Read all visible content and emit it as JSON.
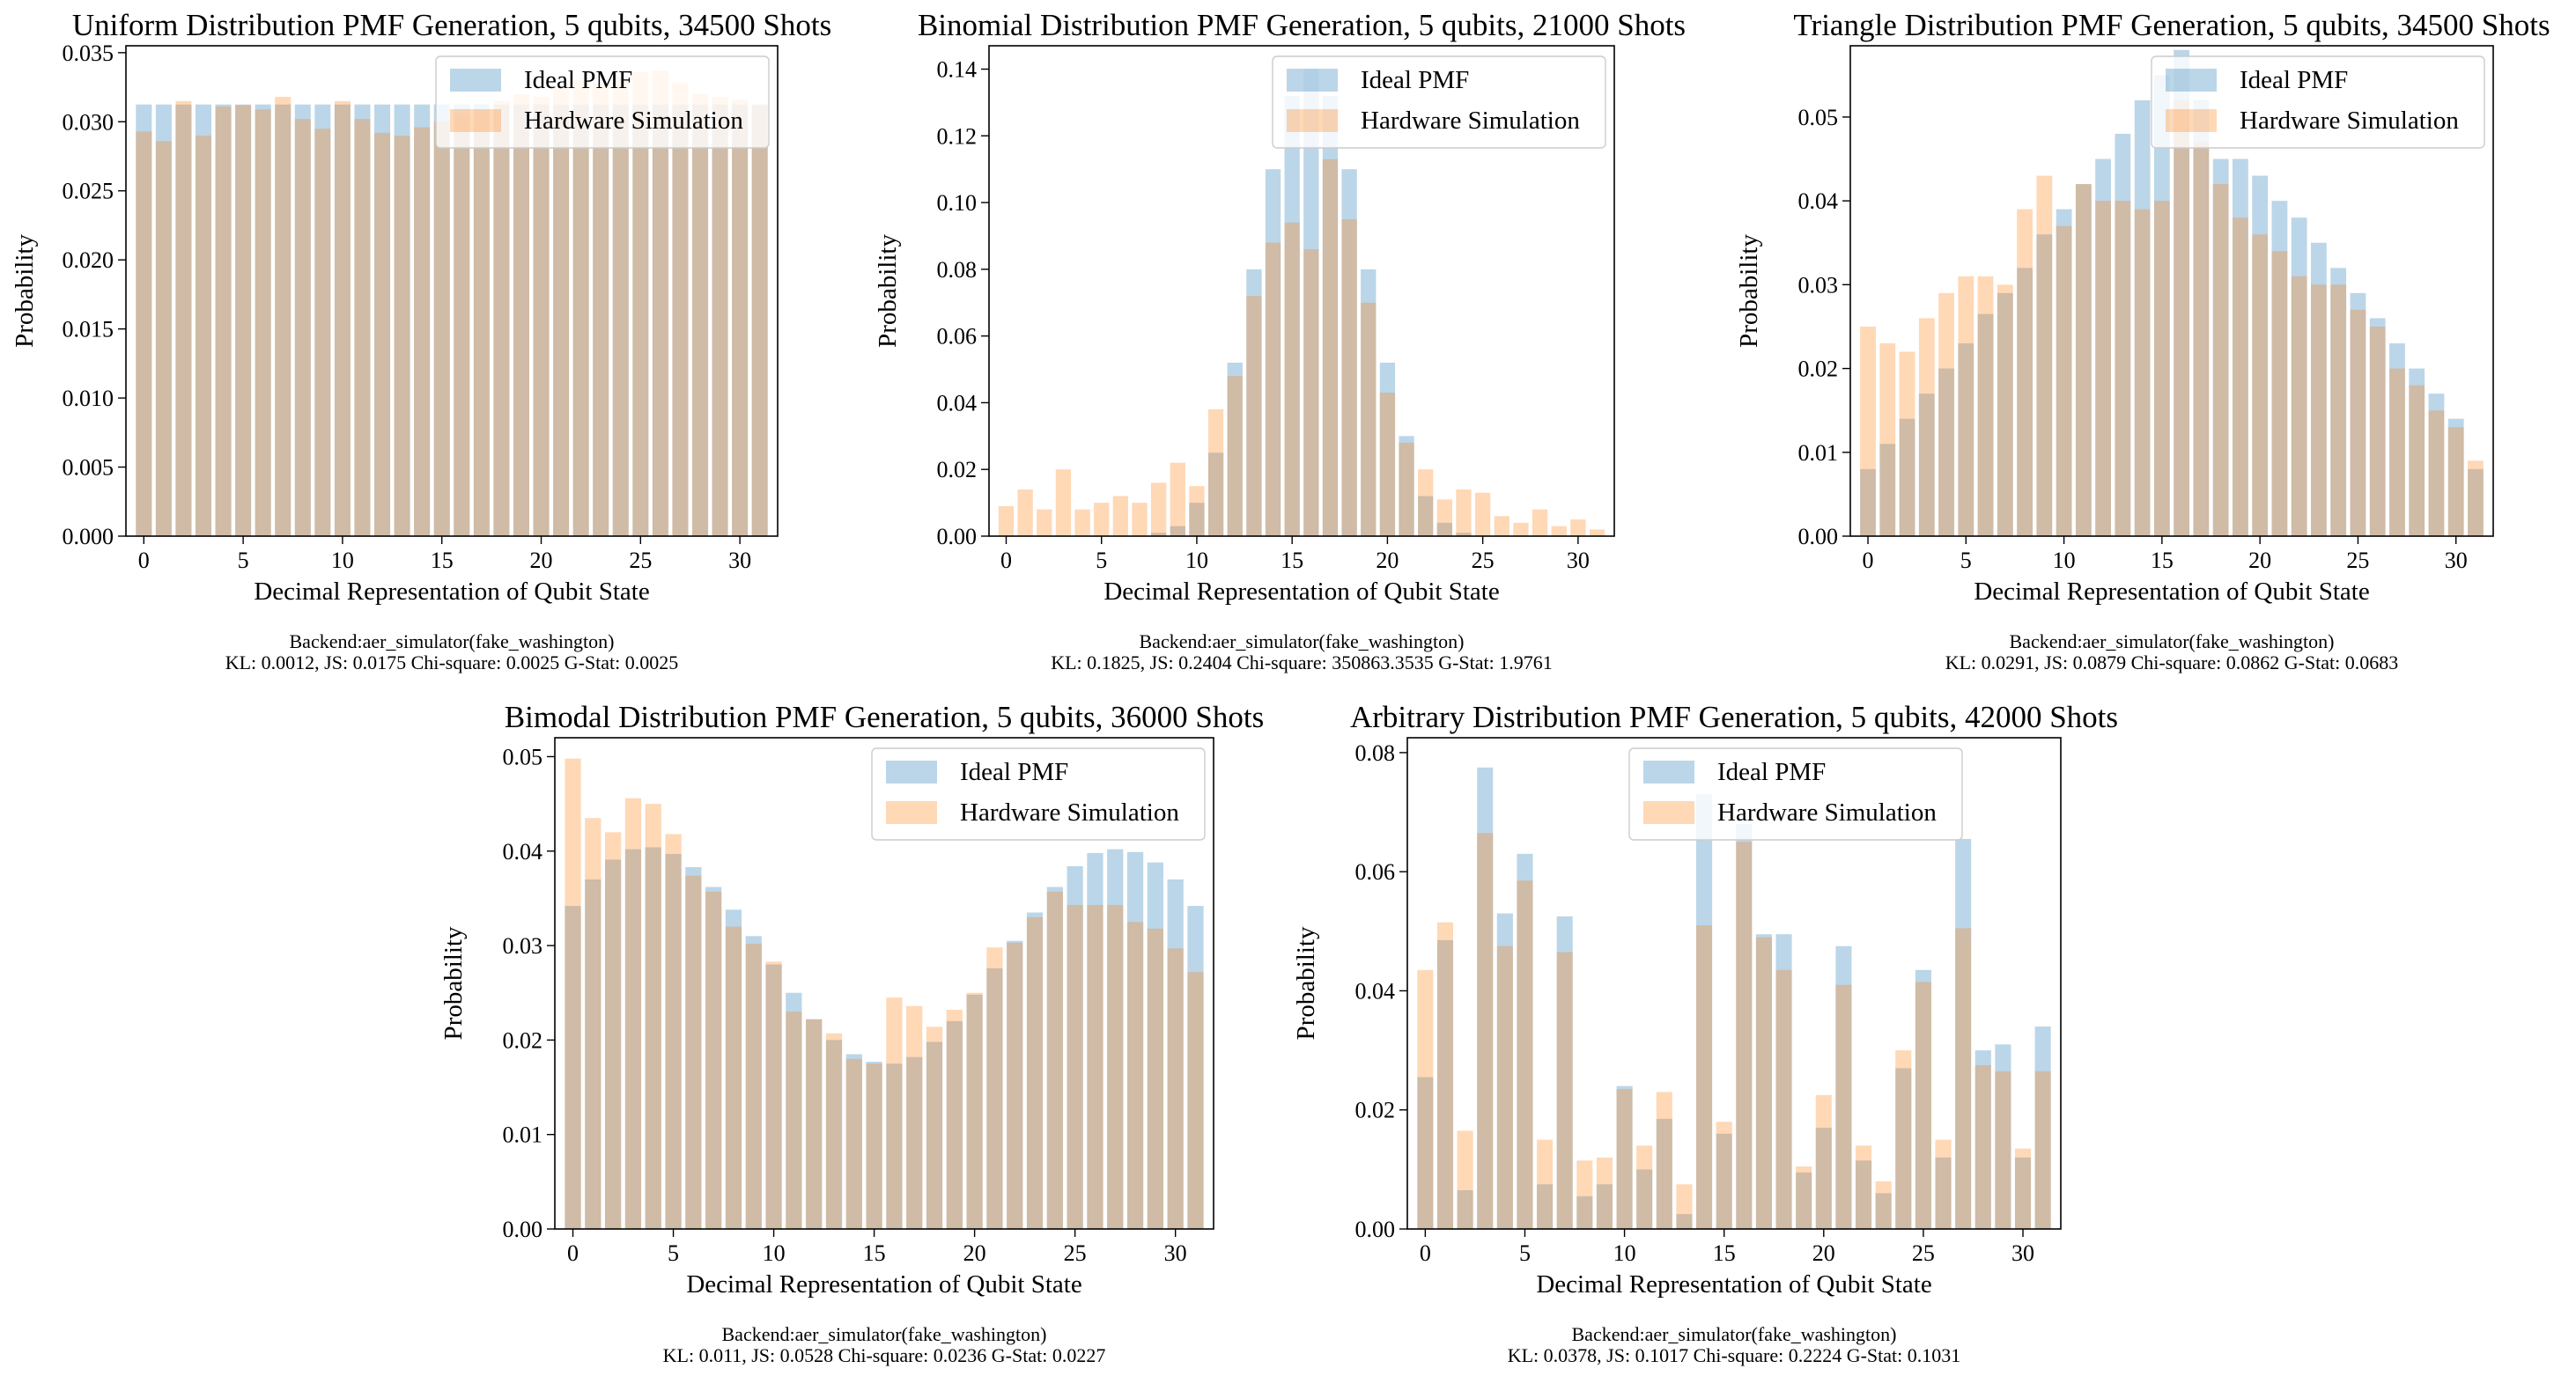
{
  "figure": {
    "series_names": [
      "Ideal PMF",
      "Hardware Simulation"
    ],
    "colors": {
      "ideal": "#1f77b4",
      "hardware": "#ff7f0e",
      "overlap": "#c9b3a0",
      "axis": "#000000",
      "background": "#ffffff"
    }
  },
  "chart_data": [
    {
      "type": "bar",
      "title": "Uniform Distribution PMF Generation, 5 qubits, 34500 Shots",
      "xlabel": "Decimal Representation of Qubit State",
      "ylabel": "Probability",
      "ylim": [
        0,
        0.0355
      ],
      "yticks": [
        0,
        0.005,
        0.01,
        0.015,
        0.02,
        0.025,
        0.03,
        0.035
      ],
      "ytick_labels": [
        "0.000",
        "0.005",
        "0.010",
        "0.015",
        "0.020",
        "0.025",
        "0.030",
        "0.035"
      ],
      "xticks": [
        0,
        5,
        10,
        15,
        20,
        25,
        30
      ],
      "legend_loc": "top-right",
      "series": [
        {
          "name": "Ideal PMF",
          "values": [
            0.03125,
            0.03125,
            0.03125,
            0.03125,
            0.03125,
            0.03125,
            0.03125,
            0.03125,
            0.03125,
            0.03125,
            0.03125,
            0.03125,
            0.03125,
            0.03125,
            0.03125,
            0.03125,
            0.03125,
            0.03125,
            0.03125,
            0.03125,
            0.03125,
            0.03125,
            0.03125,
            0.03125,
            0.03125,
            0.03125,
            0.03125,
            0.03125,
            0.03125,
            0.03125,
            0.03125,
            0.03125
          ]
        },
        {
          "name": "Hardware Simulation",
          "values": [
            0.0293,
            0.0286,
            0.0315,
            0.029,
            0.0311,
            0.0312,
            0.0309,
            0.0318,
            0.0302,
            0.0295,
            0.0315,
            0.0302,
            0.0292,
            0.029,
            0.0296,
            0.03,
            0.0305,
            0.0308,
            0.0315,
            0.032,
            0.0318,
            0.0325,
            0.033,
            0.0328,
            0.0332,
            0.0336,
            0.0337,
            0.0328,
            0.032,
            0.0318,
            0.0316,
            0.0312
          ]
        }
      ],
      "caption": [
        "Backend:aer_simulator(fake_washington)",
        "KL: 0.0012, JS: 0.0175 Chi-square: 0.0025 G-Stat: 0.0025"
      ]
    },
    {
      "type": "bar",
      "title": "Binomial Distribution PMF Generation, 5 qubits, 21000 Shots",
      "xlabel": "Decimal Representation of Qubit State",
      "ylabel": "Probability",
      "ylim": [
        0,
        0.147
      ],
      "yticks": [
        0,
        0.02,
        0.04,
        0.06,
        0.08,
        0.1,
        0.12,
        0.14
      ],
      "ytick_labels": [
        "0.00",
        "0.02",
        "0.04",
        "0.06",
        "0.08",
        "0.10",
        "0.12",
        "0.14"
      ],
      "xticks": [
        0,
        5,
        10,
        15,
        20,
        25,
        30
      ],
      "legend_loc": "top-right",
      "series": [
        {
          "name": "Ideal PMF",
          "values": [
            0,
            0,
            0,
            0,
            0,
            0,
            0,
            0,
            0.001,
            0.003,
            0.01,
            0.025,
            0.052,
            0.08,
            0.11,
            0.132,
            0.14,
            0.132,
            0.11,
            0.08,
            0.052,
            0.03,
            0.012,
            0.004,
            0.001,
            0,
            0,
            0,
            0,
            0,
            0,
            0
          ]
        },
        {
          "name": "Hardware Simulation",
          "values": [
            0.009,
            0.014,
            0.008,
            0.02,
            0.008,
            0.01,
            0.012,
            0.01,
            0.016,
            0.022,
            0.015,
            0.038,
            0.048,
            0.072,
            0.088,
            0.094,
            0.086,
            0.113,
            0.095,
            0.07,
            0.043,
            0.028,
            0.02,
            0.011,
            0.014,
            0.013,
            0.006,
            0.004,
            0.008,
            0.003,
            0.005,
            0.002
          ]
        }
      ],
      "caption": [
        "Backend:aer_simulator(fake_washington)",
        "KL: 0.1825, JS: 0.2404 Chi-square: 350863.3535 G-Stat: 1.9761"
      ]
    },
    {
      "type": "bar",
      "title": "Triangle Distribution PMF Generation, 5 qubits, 34500 Shots",
      "xlabel": "Decimal Representation of Qubit State",
      "ylabel": "Probability",
      "ylim": [
        0,
        0.0585
      ],
      "yticks": [
        0,
        0.01,
        0.02,
        0.03,
        0.04,
        0.05
      ],
      "ytick_labels": [
        "0.00",
        "0.01",
        "0.02",
        "0.03",
        "0.04",
        "0.05"
      ],
      "xticks": [
        0,
        5,
        10,
        15,
        20,
        25,
        30
      ],
      "legend_loc": "top-right",
      "series": [
        {
          "name": "Ideal PMF",
          "values": [
            0.008,
            0.011,
            0.014,
            0.017,
            0.02,
            0.023,
            0.0265,
            0.029,
            0.032,
            0.036,
            0.039,
            0.042,
            0.045,
            0.048,
            0.052,
            0.055,
            0.058,
            0.052,
            0.045,
            0.045,
            0.043,
            0.04,
            0.038,
            0.035,
            0.032,
            0.029,
            0.026,
            0.023,
            0.02,
            0.017,
            0.014,
            0.008
          ]
        },
        {
          "name": "Hardware Simulation",
          "values": [
            0.025,
            0.023,
            0.022,
            0.026,
            0.029,
            0.031,
            0.031,
            0.03,
            0.039,
            0.043,
            0.037,
            0.042,
            0.04,
            0.04,
            0.039,
            0.04,
            0.052,
            0.047,
            0.042,
            0.038,
            0.036,
            0.034,
            0.031,
            0.03,
            0.03,
            0.027,
            0.025,
            0.02,
            0.018,
            0.015,
            0.013,
            0.009
          ]
        }
      ],
      "caption": [
        "Backend:aer_simulator(fake_washington)",
        "KL: 0.0291, JS: 0.0879 Chi-square: 0.0862 G-Stat: 0.0683"
      ]
    },
    {
      "type": "bar",
      "title": "Bimodal Distribution PMF Generation, 5 qubits, 36000 Shots",
      "xlabel": "Decimal Representation of Qubit State",
      "ylabel": "Probability",
      "ylim": [
        0,
        0.052
      ],
      "yticks": [
        0,
        0.01,
        0.02,
        0.03,
        0.04,
        0.05
      ],
      "ytick_labels": [
        "0.00",
        "0.01",
        "0.02",
        "0.03",
        "0.04",
        "0.05"
      ],
      "xticks": [
        0,
        5,
        10,
        15,
        20,
        25,
        30
      ],
      "legend_loc": "top-right",
      "series": [
        {
          "name": "Ideal PMF",
          "values": [
            0.0342,
            0.037,
            0.0391,
            0.0402,
            0.0404,
            0.0397,
            0.0383,
            0.0362,
            0.0338,
            0.031,
            0.028,
            0.025,
            0.0222,
            0.02,
            0.0185,
            0.0177,
            0.0175,
            0.0182,
            0.0198,
            0.022,
            0.0248,
            0.0276,
            0.0305,
            0.0335,
            0.0362,
            0.0384,
            0.0398,
            0.0402,
            0.0399,
            0.0388,
            0.037,
            0.0342
          ]
        },
        {
          "name": "Hardware Simulation",
          "values": [
            0.0498,
            0.0435,
            0.042,
            0.0456,
            0.045,
            0.0418,
            0.0374,
            0.0357,
            0.032,
            0.0302,
            0.0283,
            0.023,
            0.0222,
            0.0207,
            0.018,
            0.0175,
            0.0245,
            0.0236,
            0.0214,
            0.0232,
            0.025,
            0.0298,
            0.0303,
            0.033,
            0.0357,
            0.0343,
            0.0343,
            0.0343,
            0.0325,
            0.0318,
            0.0297,
            0.0272
          ]
        }
      ],
      "caption": [
        "Backend:aer_simulator(fake_washington)",
        "KL: 0.011, JS: 0.0528 Chi-square: 0.0236 G-Stat: 0.0227"
      ]
    },
    {
      "type": "bar",
      "title": "Arbitrary Distribution PMF Generation, 5 qubits, 42000 Shots",
      "xlabel": "Decimal Representation of Qubit State",
      "ylabel": "Probability",
      "ylim": [
        0,
        0.0825
      ],
      "yticks": [
        0,
        0.02,
        0.04,
        0.06,
        0.08
      ],
      "ytick_labels": [
        "0.00",
        "0.02",
        "0.04",
        "0.06",
        "0.08"
      ],
      "xticks": [
        0,
        5,
        10,
        15,
        20,
        25,
        30
      ],
      "legend_loc": "top-left",
      "series": [
        {
          "name": "Ideal PMF",
          "values": [
            0.0255,
            0.0485,
            0.0065,
            0.0775,
            0.053,
            0.063,
            0.0075,
            0.0525,
            0.0055,
            0.0075,
            0.024,
            0.01,
            0.0185,
            0.0025,
            0.073,
            0.016,
            0.068,
            0.0495,
            0.0495,
            0.0095,
            0.017,
            0.0475,
            0.0115,
            0.006,
            0.027,
            0.0435,
            0.012,
            0.0655,
            0.03,
            0.031,
            0.012,
            0.034
          ]
        },
        {
          "name": "Hardware Simulation",
          "values": [
            0.0435,
            0.0515,
            0.0165,
            0.0665,
            0.0475,
            0.0585,
            0.015,
            0.0465,
            0.0115,
            0.012,
            0.0235,
            0.014,
            0.023,
            0.0075,
            0.051,
            0.018,
            0.065,
            0.049,
            0.0435,
            0.0105,
            0.0225,
            0.041,
            0.014,
            0.008,
            0.03,
            0.0415,
            0.015,
            0.0505,
            0.0275,
            0.0265,
            0.0135,
            0.0265
          ]
        }
      ],
      "caption": [
        "Backend:aer_simulator(fake_washington)",
        "KL: 0.0378, JS: 0.1017 Chi-square: 0.2224 G-Stat: 0.1031"
      ]
    }
  ]
}
